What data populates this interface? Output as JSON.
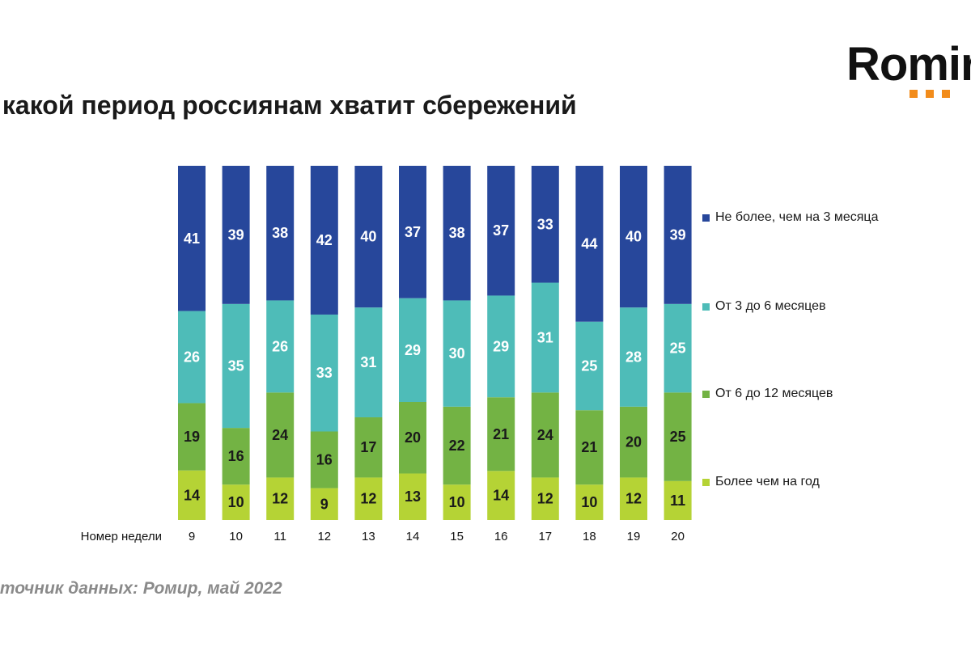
{
  "title": " какой период россиянам хватит сбережений",
  "source": " точник данных: Ромир, май 2022",
  "logo": {
    "text": "Romir"
  },
  "chart_data": {
    "type": "bar",
    "stacked": true,
    "percent_stacked": true,
    "xlabel": "Номер недели",
    "categories": [
      "9",
      "10",
      "11",
      "12",
      "13",
      "14",
      "15",
      "16",
      "17",
      "18",
      "19",
      "20"
    ],
    "series": [
      {
        "name": "Более чем на год",
        "color": "#b5d335",
        "label_color": "#1a1a1a",
        "values": [
          14,
          10,
          12,
          9,
          12,
          13,
          10,
          14,
          12,
          10,
          12,
          11
        ]
      },
      {
        "name": "От 6 до 12 месяцев",
        "color": "#73b344",
        "label_color": "#1a1a1a",
        "values": [
          19,
          16,
          24,
          16,
          17,
          20,
          22,
          21,
          24,
          21,
          20,
          25
        ]
      },
      {
        "name": "От 3 до 6 месяцев",
        "color": "#4ebcb8",
        "label_color": "#ffffff",
        "values": [
          26,
          35,
          26,
          33,
          31,
          29,
          30,
          29,
          31,
          25,
          28,
          25
        ]
      },
      {
        "name": "Не более, чем на 3 месяца",
        "color": "#27479b",
        "label_color": "#ffffff",
        "values": [
          41,
          39,
          38,
          42,
          40,
          37,
          38,
          37,
          33,
          44,
          40,
          39
        ]
      }
    ],
    "legend_position": "right",
    "grid": false
  }
}
